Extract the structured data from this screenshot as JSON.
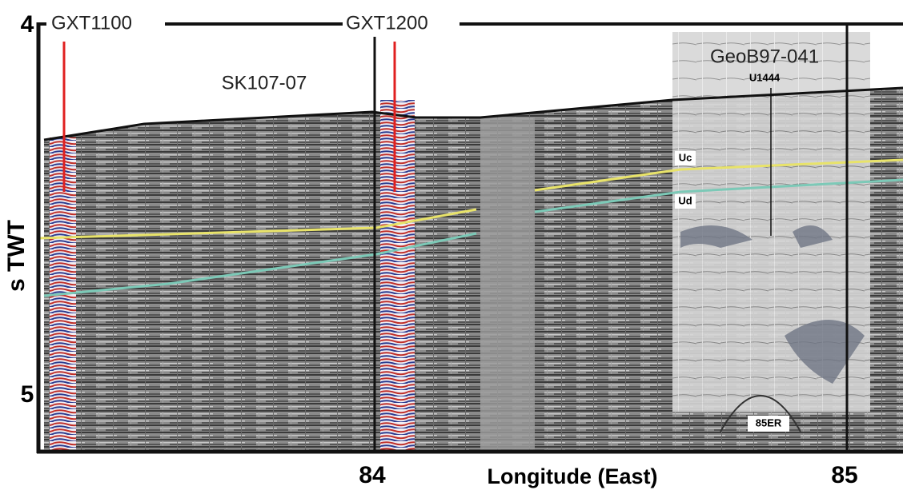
{
  "figure": {
    "wells": [
      "GXT1100",
      "GXT1200"
    ],
    "profile_label": "SK107-07",
    "core_label": "GeoB97-041",
    "site_label": "U1444",
    "horizons": [
      "Uc",
      "Ud"
    ],
    "feature_label": "85ER",
    "y_axis": {
      "label": "s TWT",
      "ticks": [
        "4",
        "5"
      ]
    },
    "x_axis": {
      "label": "Longitude (East)",
      "ticks": [
        "84",
        "85"
      ]
    }
  }
}
